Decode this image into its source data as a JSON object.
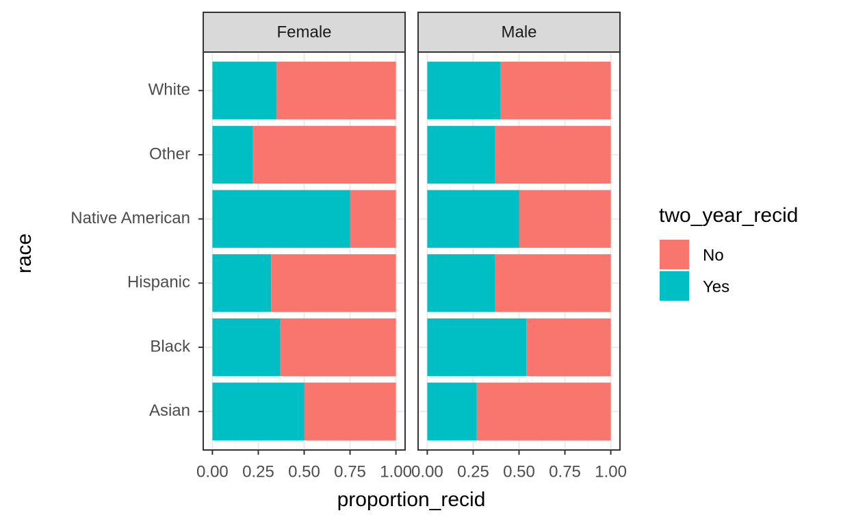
{
  "chart_data": {
    "type": "bar",
    "orientation": "horizontal",
    "stacked": true,
    "xlabel": "proportion_recid",
    "ylabel": "race",
    "legend_title": "two_year_recid",
    "categories": [
      "Asian",
      "Black",
      "Hispanic",
      "Native American",
      "Other",
      "White"
    ],
    "xlim": [
      -0.05,
      1.05
    ],
    "xticks": [
      {
        "value": 0,
        "label": "0.00"
      },
      {
        "value": 0.25,
        "label": "0.25"
      },
      {
        "value": 0.5,
        "label": "0.50"
      },
      {
        "value": 0.75,
        "label": "0.75"
      },
      {
        "value": 1,
        "label": "1.00"
      }
    ],
    "grid": true,
    "facets": [
      {
        "title": "Female",
        "series": [
          {
            "name": "No",
            "color": "#F8766D",
            "values": [
              0.5,
              0.63,
              0.68,
              0.25,
              0.78,
              0.65
            ]
          },
          {
            "name": "Yes",
            "color": "#00BFC4",
            "values": [
              0.5,
              0.37,
              0.32,
              0.75,
              0.22,
              0.35
            ]
          }
        ]
      },
      {
        "title": "Male",
        "series": [
          {
            "name": "No",
            "color": "#F8766D",
            "values": [
              0.73,
              0.46,
              0.63,
              0.5,
              0.63,
              0.6
            ]
          },
          {
            "name": "Yes",
            "color": "#00BFC4",
            "values": [
              0.27,
              0.54,
              0.37,
              0.5,
              0.37,
              0.4
            ]
          }
        ]
      }
    ]
  }
}
